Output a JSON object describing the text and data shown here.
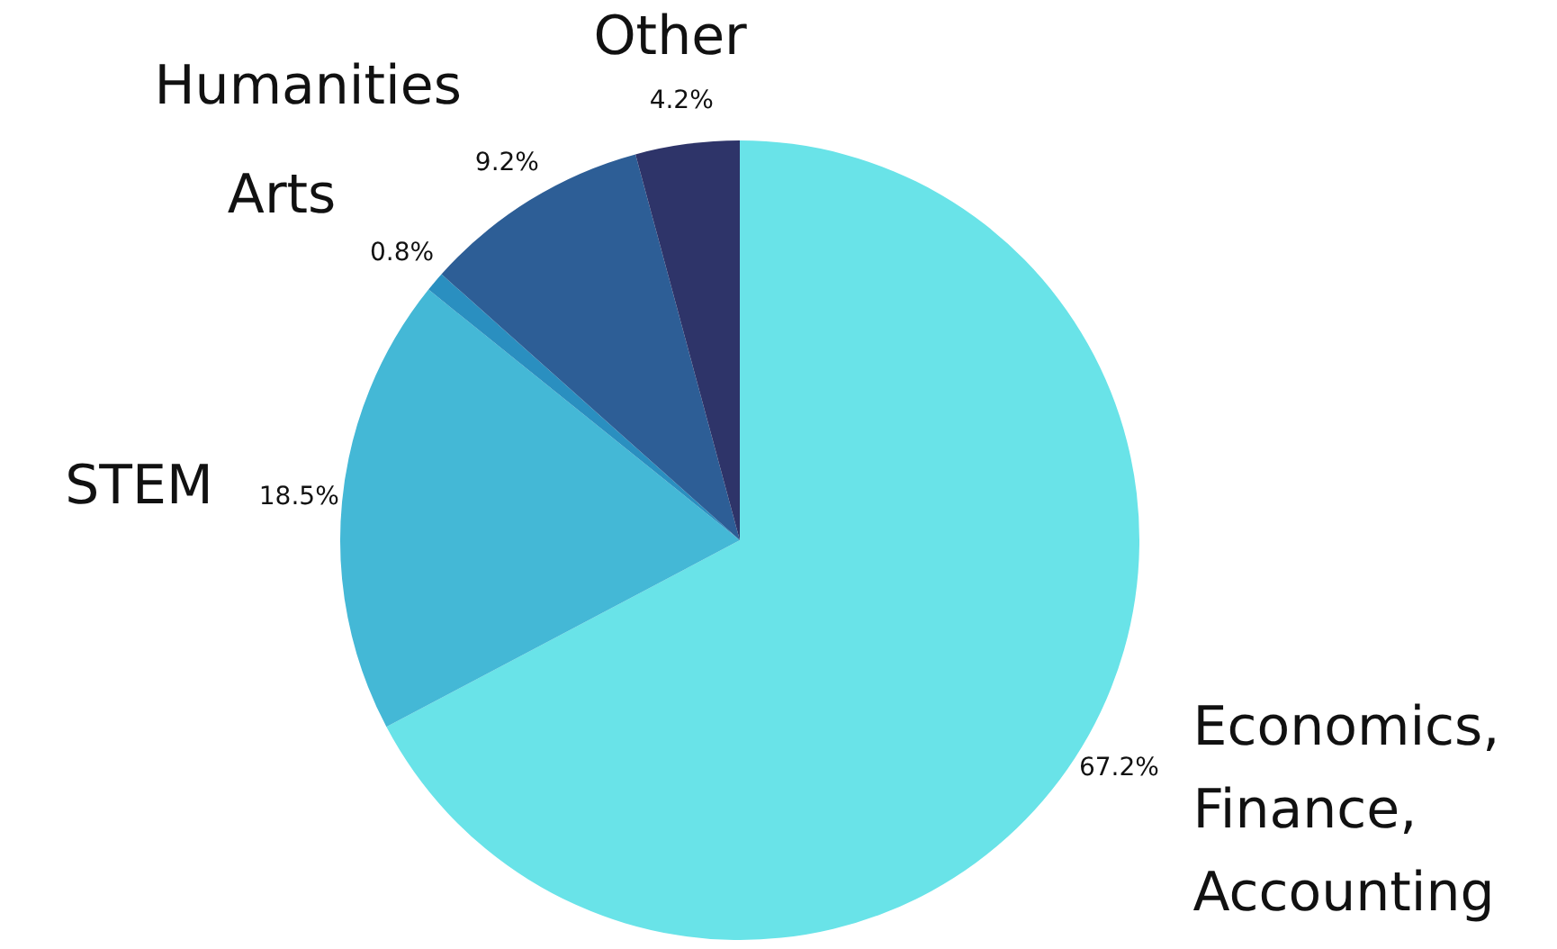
{
  "chart_data": {
    "type": "pie",
    "categories": [
      "Economics, Finance, Accounting",
      "STEM",
      "Arts",
      "Humanities",
      "Other"
    ],
    "values": [
      67.2,
      18.5,
      0.8,
      9.2,
      4.2
    ],
    "colors": [
      "#69e3e8",
      "#44b8d6",
      "#2a8fc0",
      "#2d5e96",
      "#2e3469"
    ],
    "value_labels": [
      "67.2%",
      "18.5%",
      "0.8%",
      "9.2%",
      "4.2%"
    ],
    "legend": false
  }
}
